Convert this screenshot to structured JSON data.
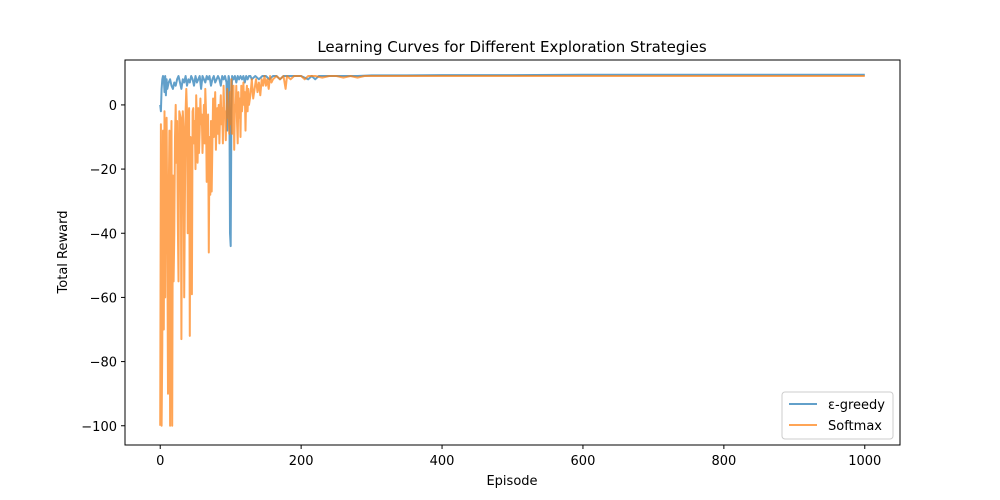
{
  "chart_data": {
    "type": "line",
    "title": "Learning Curves for Different Exploration Strategies",
    "xlabel": "Episode",
    "ylabel": "Total Reward",
    "xlim": [
      -50,
      1050
    ],
    "ylim": [
      -106,
      14
    ],
    "xticks": [
      0,
      200,
      400,
      600,
      800,
      1000
    ],
    "yticks": [
      -100,
      -80,
      -60,
      -40,
      -20,
      0
    ],
    "ytick_labels": [
      "−100",
      "−80",
      "−60",
      "−40",
      "−20",
      "0"
    ],
    "legend_position": "lower-right",
    "grid": false,
    "series": [
      {
        "name": "ε-greedy",
        "color": "#1f77b4",
        "points": [
          [
            0,
            0
          ],
          [
            1,
            -2
          ],
          [
            2,
            5
          ],
          [
            3,
            8
          ],
          [
            4,
            9
          ],
          [
            5,
            8
          ],
          [
            6,
            4
          ],
          [
            7,
            9
          ],
          [
            8,
            3
          ],
          [
            9,
            8
          ],
          [
            10,
            5
          ],
          [
            12,
            7
          ],
          [
            14,
            8
          ],
          [
            16,
            6
          ],
          [
            18,
            5
          ],
          [
            20,
            7
          ],
          [
            22,
            6
          ],
          [
            24,
            8
          ],
          [
            26,
            9
          ],
          [
            28,
            7
          ],
          [
            30,
            5
          ],
          [
            32,
            8
          ],
          [
            34,
            7
          ],
          [
            36,
            9
          ],
          [
            38,
            6
          ],
          [
            40,
            8
          ],
          [
            42,
            7
          ],
          [
            44,
            9
          ],
          [
            46,
            8
          ],
          [
            48,
            6
          ],
          [
            50,
            9
          ],
          [
            52,
            7
          ],
          [
            54,
            8
          ],
          [
            56,
            9
          ],
          [
            58,
            5
          ],
          [
            60,
            9
          ],
          [
            62,
            8
          ],
          [
            64,
            7
          ],
          [
            66,
            9
          ],
          [
            68,
            8
          ],
          [
            70,
            9
          ],
          [
            72,
            6
          ],
          [
            74,
            8
          ],
          [
            76,
            9
          ],
          [
            78,
            7
          ],
          [
            80,
            8
          ],
          [
            82,
            9
          ],
          [
            84,
            8
          ],
          [
            86,
            6
          ],
          [
            88,
            9
          ],
          [
            90,
            8
          ],
          [
            92,
            9
          ],
          [
            94,
            7
          ],
          [
            95,
            -8
          ],
          [
            96,
            6
          ],
          [
            97,
            9
          ],
          [
            98,
            8
          ],
          [
            99,
            -40
          ],
          [
            100,
            -44
          ],
          [
            101,
            -2
          ],
          [
            102,
            9
          ],
          [
            104,
            8
          ],
          [
            106,
            9
          ],
          [
            108,
            7
          ],
          [
            110,
            9
          ],
          [
            112,
            8
          ],
          [
            114,
            9
          ],
          [
            116,
            8
          ],
          [
            118,
            9
          ],
          [
            120,
            7
          ],
          [
            122,
            9
          ],
          [
            124,
            8
          ],
          [
            126,
            9
          ],
          [
            128,
            9
          ],
          [
            130,
            8
          ],
          [
            135,
            9
          ],
          [
            140,
            8
          ],
          [
            145,
            9
          ],
          [
            150,
            9
          ],
          [
            155,
            8
          ],
          [
            160,
            9
          ],
          [
            165,
            9
          ],
          [
            170,
            8
          ],
          [
            175,
            9
          ],
          [
            180,
            9
          ],
          [
            190,
            9
          ],
          [
            200,
            9
          ],
          [
            210,
            8
          ],
          [
            215,
            9
          ],
          [
            220,
            8
          ],
          [
            225,
            9
          ],
          [
            230,
            9
          ],
          [
            240,
            9
          ],
          [
            250,
            9
          ],
          [
            260,
            9
          ],
          [
            280,
            9
          ],
          [
            300,
            9.2
          ],
          [
            350,
            9.2
          ],
          [
            400,
            9.3
          ],
          [
            450,
            9.3
          ],
          [
            500,
            9.3
          ],
          [
            600,
            9.4
          ],
          [
            700,
            9.4
          ],
          [
            800,
            9.4
          ],
          [
            900,
            9.4
          ],
          [
            1000,
            9.4
          ]
        ]
      },
      {
        "name": "Softmax",
        "color": "#ff7f0e",
        "points": [
          [
            0,
            -100
          ],
          [
            1,
            -6
          ],
          [
            2,
            -100
          ],
          [
            3,
            -75
          ],
          [
            4,
            -8
          ],
          [
            5,
            -70
          ],
          [
            6,
            -2
          ],
          [
            7,
            -60
          ],
          [
            8,
            -10
          ],
          [
            9,
            -4
          ],
          [
            10,
            -39
          ],
          [
            11,
            -90
          ],
          [
            12,
            -30
          ],
          [
            13,
            -8
          ],
          [
            14,
            -100
          ],
          [
            15,
            -20
          ],
          [
            16,
            -5
          ],
          [
            17,
            -100
          ],
          [
            18,
            -22
          ],
          [
            19,
            -55
          ],
          [
            20,
            -40
          ],
          [
            21,
            -10
          ],
          [
            22,
            0
          ],
          [
            23,
            -18
          ],
          [
            24,
            -5
          ],
          [
            25,
            -36
          ],
          [
            26,
            -55
          ],
          [
            27,
            -2
          ],
          [
            28,
            -3
          ],
          [
            29,
            -4
          ],
          [
            30,
            -73
          ],
          [
            31,
            -12
          ],
          [
            32,
            -2
          ],
          [
            33,
            -7
          ],
          [
            34,
            -60
          ],
          [
            35,
            -30
          ],
          [
            36,
            -2
          ],
          [
            37,
            5
          ],
          [
            38,
            -2
          ],
          [
            39,
            -40
          ],
          [
            40,
            -5
          ],
          [
            41,
            -1
          ],
          [
            42,
            -72
          ],
          [
            43,
            -10
          ],
          [
            44,
            -20
          ],
          [
            45,
            -59
          ],
          [
            46,
            -2
          ],
          [
            47,
            -1
          ],
          [
            48,
            -12
          ],
          [
            49,
            -5
          ],
          [
            50,
            -20
          ],
          [
            51,
            3
          ],
          [
            52,
            -5
          ],
          [
            53,
            -18
          ],
          [
            54,
            -1
          ],
          [
            55,
            -15
          ],
          [
            56,
            -8
          ],
          [
            57,
            2
          ],
          [
            58,
            -6
          ],
          [
            59,
            -3
          ],
          [
            60,
            -15
          ],
          [
            61,
            -8
          ],
          [
            62,
            0
          ],
          [
            63,
            -12
          ],
          [
            64,
            5
          ],
          [
            65,
            -2
          ],
          [
            66,
            -24
          ],
          [
            67,
            -10
          ],
          [
            68,
            -3
          ],
          [
            69,
            -46
          ],
          [
            70,
            -10
          ],
          [
            71,
            -28
          ],
          [
            72,
            -5
          ],
          [
            73,
            -27
          ],
          [
            74,
            -12
          ],
          [
            75,
            2
          ],
          [
            76,
            -10
          ],
          [
            77,
            -2
          ],
          [
            78,
            4
          ],
          [
            79,
            -14
          ],
          [
            80,
            -5
          ],
          [
            81,
            -1
          ],
          [
            82,
            -9
          ],
          [
            83,
            0
          ],
          [
            84,
            -12
          ],
          [
            85,
            -2
          ],
          [
            86,
            3
          ],
          [
            87,
            -6
          ],
          [
            88,
            -1
          ],
          [
            89,
            -12
          ],
          [
            90,
            6
          ],
          [
            91,
            -3
          ],
          [
            92,
            -2
          ],
          [
            93,
            -11
          ],
          [
            94,
            -2
          ],
          [
            95,
            5
          ],
          [
            96,
            -4
          ],
          [
            97,
            -3
          ],
          [
            98,
            -9
          ],
          [
            99,
            4
          ],
          [
            100,
            -6
          ],
          [
            101,
            8
          ],
          [
            102,
            -9
          ],
          [
            103,
            -4
          ],
          [
            104,
            6
          ],
          [
            105,
            -14
          ],
          [
            106,
            0
          ],
          [
            107,
            -2
          ],
          [
            108,
            6
          ],
          [
            109,
            -5
          ],
          [
            110,
            -12
          ],
          [
            111,
            4
          ],
          [
            112,
            -4
          ],
          [
            113,
            2
          ],
          [
            114,
            -10
          ],
          [
            115,
            6
          ],
          [
            116,
            -2
          ],
          [
            117,
            2
          ],
          [
            118,
            7
          ],
          [
            119,
            0
          ],
          [
            120,
            4
          ],
          [
            121,
            -8
          ],
          [
            122,
            3
          ],
          [
            123,
            6
          ],
          [
            124,
            -2
          ],
          [
            125,
            5
          ],
          [
            126,
            0
          ],
          [
            128,
            3
          ],
          [
            130,
            8
          ],
          [
            132,
            2
          ],
          [
            134,
            5
          ],
          [
            136,
            8
          ],
          [
            138,
            4
          ],
          [
            140,
            7
          ],
          [
            142,
            3
          ],
          [
            144,
            8
          ],
          [
            146,
            6
          ],
          [
            148,
            9
          ],
          [
            150,
            6
          ],
          [
            152,
            8
          ],
          [
            154,
            5
          ],
          [
            156,
            9
          ],
          [
            158,
            7
          ],
          [
            160,
            8
          ],
          [
            165,
            9
          ],
          [
            170,
            8
          ],
          [
            175,
            9
          ],
          [
            178,
            5
          ],
          [
            180,
            9
          ],
          [
            185,
            8
          ],
          [
            190,
            9
          ],
          [
            195,
            9
          ],
          [
            200,
            9
          ],
          [
            205,
            8
          ],
          [
            210,
            9
          ],
          [
            220,
            9
          ],
          [
            230,
            8.5
          ],
          [
            240,
            9
          ],
          [
            250,
            9
          ],
          [
            260,
            8.5
          ],
          [
            270,
            9
          ],
          [
            280,
            8.5
          ],
          [
            290,
            9
          ],
          [
            300,
            9
          ],
          [
            350,
            9
          ],
          [
            400,
            9
          ],
          [
            450,
            9
          ],
          [
            500,
            9
          ],
          [
            600,
            9
          ],
          [
            700,
            9
          ],
          [
            800,
            9
          ],
          [
            900,
            9
          ],
          [
            1000,
            9
          ]
        ]
      }
    ]
  }
}
